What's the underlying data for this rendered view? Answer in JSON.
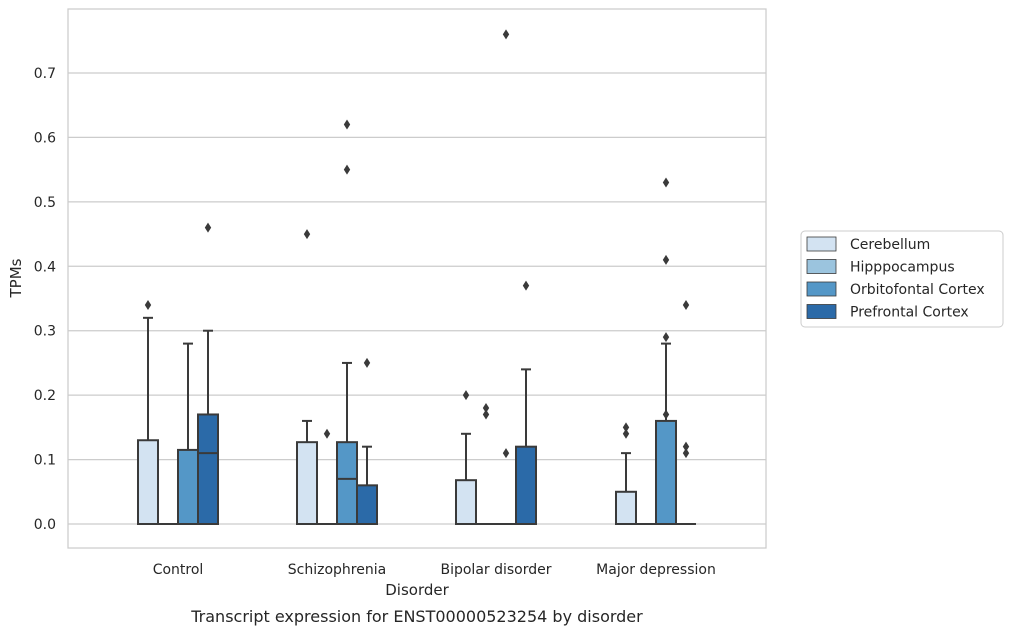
{
  "chart_data": {
    "type": "box",
    "title": "",
    "caption": "Transcript expression for ENST00000523254 by disorder",
    "xlabel": "Disorder",
    "ylabel": "TPMs",
    "ylim": [
      -0.038,
      0.8
    ],
    "yticks": [
      "0.0",
      "0.1",
      "0.2",
      "0.3",
      "0.4",
      "0.5",
      "0.6",
      "0.7"
    ],
    "grid": true,
    "legend_position": "right",
    "categories": [
      "Control",
      "Schizophrenia",
      "Bipolar disorder",
      "Major depression"
    ],
    "series": [
      {
        "name": "Cerebellum",
        "color": "#d3e3f2",
        "boxes": [
          {
            "q1": 0,
            "median": 0,
            "q3": 0.13,
            "whisker_low": 0,
            "whisker_high": 0.32,
            "outliers": [
              0.34
            ]
          },
          {
            "q1": 0,
            "median": 0,
            "q3": 0.127,
            "whisker_low": 0,
            "whisker_high": 0.16,
            "outliers": [
              0.45
            ]
          },
          {
            "q1": 0,
            "median": 0,
            "q3": 0.068,
            "whisker_low": 0,
            "whisker_high": 0.14,
            "outliers": [
              0.2
            ]
          },
          {
            "q1": 0,
            "median": 0,
            "q3": 0.05,
            "whisker_low": 0,
            "whisker_high": 0.11,
            "outliers": [
              0.14,
              0.15
            ]
          }
        ]
      },
      {
        "name": "Hipppocampus",
        "color": "#9bc4de",
        "boxes": [
          {
            "q1": 0,
            "median": 0,
            "q3": 0,
            "whisker_low": 0,
            "whisker_high": 0,
            "outliers": []
          },
          {
            "q1": 0,
            "median": 0,
            "q3": 0,
            "whisker_low": 0,
            "whisker_high": 0,
            "outliers": [
              0.14
            ]
          },
          {
            "q1": 0,
            "median": 0,
            "q3": 0,
            "whisker_low": 0,
            "whisker_high": 0,
            "outliers": [
              0.17,
              0.18
            ]
          },
          {
            "q1": 0,
            "median": 0,
            "q3": 0,
            "whisker_low": 0,
            "whisker_high": 0,
            "outliers": []
          }
        ]
      },
      {
        "name": "Orbitofontal Cortex",
        "color": "#5497c7",
        "boxes": [
          {
            "q1": 0,
            "median": 0,
            "q3": 0.115,
            "whisker_low": 0,
            "whisker_high": 0.28,
            "outliers": []
          },
          {
            "q1": 0,
            "median": 0.07,
            "q3": 0.127,
            "whisker_low": 0,
            "whisker_high": 0.25,
            "outliers": [
              0.55,
              0.62
            ]
          },
          {
            "q1": 0,
            "median": 0,
            "q3": 0,
            "whisker_low": 0,
            "whisker_high": 0,
            "outliers": [
              0.11,
              0.76
            ]
          },
          {
            "q1": 0,
            "median": 0,
            "q3": 0.16,
            "whisker_low": 0,
            "whisker_high": 0.28,
            "outliers": [
              0.17,
              0.29,
              0.41,
              0.53
            ]
          }
        ]
      },
      {
        "name": "Prefrontal Cortex",
        "color": "#2b6aa8",
        "boxes": [
          {
            "q1": 0,
            "median": 0.11,
            "q3": 0.17,
            "whisker_low": 0,
            "whisker_high": 0.3,
            "outliers": [
              0.46
            ]
          },
          {
            "q1": 0,
            "median": 0,
            "q3": 0.06,
            "whisker_low": 0,
            "whisker_high": 0.12,
            "outliers": [
              0.25
            ]
          },
          {
            "q1": 0,
            "median": 0,
            "q3": 0.12,
            "whisker_low": 0,
            "whisker_high": 0.24,
            "outliers": [
              0.37
            ]
          },
          {
            "q1": 0,
            "median": 0,
            "q3": 0,
            "whisker_low": 0,
            "whisker_high": 0,
            "outliers": [
              0.11,
              0.12,
              0.34
            ]
          }
        ]
      }
    ]
  }
}
